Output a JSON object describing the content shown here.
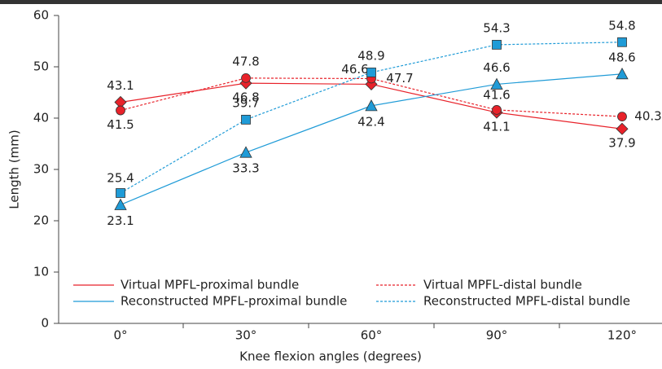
{
  "chart_data": {
    "type": "line",
    "x_label": "Knee flexion angles (degrees)",
    "y_label": "Length (mm)",
    "categories": [
      "0°",
      "30°",
      "60°",
      "90°",
      "120°"
    ],
    "ylim": [
      0,
      60
    ],
    "yticks": [
      0,
      10,
      20,
      30,
      40,
      50,
      60
    ],
    "series": [
      {
        "name": "Virtual MPFL-proximal bundle",
        "color": "#e8222a",
        "dashed": false,
        "marker": "diamond",
        "values": [
          43.1,
          46.8,
          46.6,
          41.1,
          37.9
        ]
      },
      {
        "name": "Virtual MPFL-distal bundle",
        "color": "#e8222a",
        "dashed": true,
        "marker": "circle",
        "values": [
          41.5,
          47.8,
          47.7,
          41.6,
          40.3
        ]
      },
      {
        "name": "Reconstructed MPFL-proximal bundle",
        "color": "#1f9bd7",
        "dashed": false,
        "marker": "triangle",
        "values": [
          23.1,
          33.3,
          42.4,
          46.6,
          48.6
        ]
      },
      {
        "name": "Reconstructed MPFL-distal bundle",
        "color": "#1f9bd7",
        "dashed": true,
        "marker": "square",
        "values": [
          25.4,
          39.7,
          48.9,
          54.3,
          54.8
        ]
      }
    ]
  }
}
